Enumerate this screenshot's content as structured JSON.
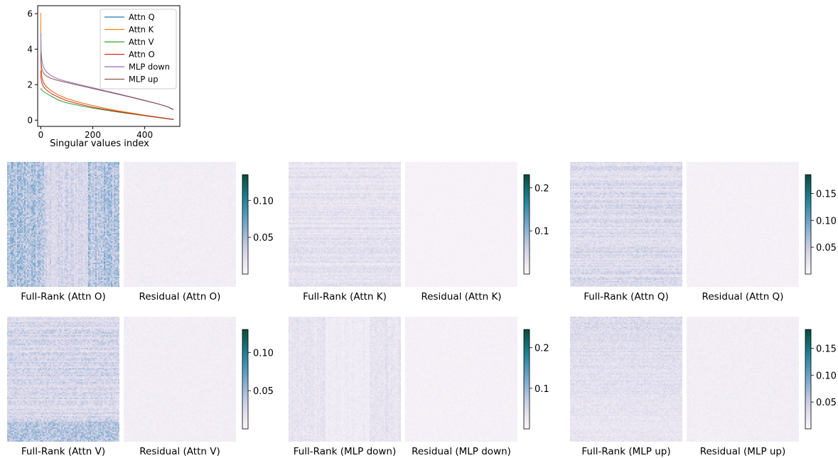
{
  "chart_data": [
    {
      "type": "line",
      "title": "",
      "xlabel": "Singular values index",
      "ylabel": "",
      "xlim": [
        -12,
        535
      ],
      "ylim": [
        -0.35,
        6.45
      ],
      "xticks": [
        0,
        200,
        400
      ],
      "yticks": [
        0,
        2,
        4,
        6
      ],
      "grid": false,
      "legend_position": "top-right",
      "series": [
        {
          "name": "Attn Q",
          "color": "#1f77b4",
          "x": [
            0,
            1,
            3,
            5,
            10,
            20,
            40,
            70,
            100,
            150,
            200,
            250,
            300,
            350,
            400,
            450,
            490,
            511
          ],
          "y": [
            5.5,
            3.0,
            2.55,
            2.35,
            2.1,
            1.9,
            1.65,
            1.4,
            1.22,
            1.0,
            0.82,
            0.66,
            0.52,
            0.4,
            0.28,
            0.17,
            0.09,
            0.05
          ]
        },
        {
          "name": "Attn K",
          "color": "#ff7f0e",
          "x": [
            0,
            1,
            3,
            5,
            10,
            20,
            40,
            70,
            100,
            150,
            200,
            250,
            300,
            350,
            400,
            450,
            490,
            511
          ],
          "y": [
            6.05,
            3.1,
            2.6,
            2.4,
            2.15,
            1.92,
            1.66,
            1.4,
            1.22,
            1.0,
            0.82,
            0.66,
            0.52,
            0.4,
            0.28,
            0.17,
            0.09,
            0.04
          ]
        },
        {
          "name": "Attn V",
          "color": "#2ca02c",
          "x": [
            0,
            1,
            3,
            5,
            10,
            20,
            40,
            70,
            100,
            150,
            200,
            250,
            300,
            350,
            400,
            450,
            490,
            511
          ],
          "y": [
            1.8,
            1.75,
            1.72,
            1.68,
            1.62,
            1.52,
            1.35,
            1.12,
            0.98,
            0.82,
            0.68,
            0.56,
            0.45,
            0.35,
            0.25,
            0.15,
            0.07,
            0.03
          ]
        },
        {
          "name": "Attn O",
          "color": "#d62728",
          "x": [
            0,
            1,
            3,
            5,
            10,
            20,
            40,
            70,
            100,
            150,
            200,
            250,
            300,
            350,
            400,
            450,
            490,
            511
          ],
          "y": [
            2.8,
            2.35,
            2.15,
            2.05,
            1.9,
            1.72,
            1.5,
            1.28,
            1.1,
            0.9,
            0.73,
            0.6,
            0.48,
            0.37,
            0.26,
            0.16,
            0.08,
            0.04
          ]
        },
        {
          "name": "MLP down",
          "color": "#9467bd",
          "x": [
            0,
            1,
            3,
            5,
            10,
            20,
            40,
            70,
            100,
            150,
            200,
            250,
            300,
            350,
            400,
            450,
            490,
            511
          ],
          "y": [
            4.9,
            4.0,
            3.5,
            3.3,
            3.0,
            2.75,
            2.5,
            2.3,
            2.18,
            2.0,
            1.83,
            1.65,
            1.48,
            1.3,
            1.12,
            0.93,
            0.75,
            0.6
          ]
        },
        {
          "name": "MLP up",
          "color": "#8c564b",
          "x": [
            0,
            1,
            3,
            5,
            10,
            20,
            40,
            70,
            100,
            150,
            200,
            250,
            300,
            350,
            400,
            450,
            490,
            511
          ],
          "y": [
            3.8,
            3.3,
            3.0,
            2.85,
            2.65,
            2.5,
            2.35,
            2.22,
            2.12,
            1.95,
            1.78,
            1.62,
            1.45,
            1.28,
            1.1,
            0.92,
            0.74,
            0.58
          ]
        }
      ]
    },
    {
      "type": "heatmap",
      "group": "Attn O",
      "panels": [
        {
          "title": "Full-Rank (Attn O)",
          "intensity": 0.32,
          "stripe": "vertical"
        },
        {
          "title": "Residual (Attn O)",
          "intensity": 0.07,
          "stripe": "none"
        }
      ],
      "colorbar": {
        "min": 0.0,
        "max": 0.135,
        "ticks": [
          0.05,
          0.1
        ],
        "tick_labels": [
          "0.05",
          "0.10"
        ]
      }
    },
    {
      "type": "heatmap",
      "group": "Attn K",
      "panels": [
        {
          "title": "Full-Rank (Attn K)",
          "intensity": 0.16,
          "stripe": "horizontal"
        },
        {
          "title": "Residual (Attn K)",
          "intensity": 0.04,
          "stripe": "none"
        }
      ],
      "colorbar": {
        "min": 0.0,
        "max": 0.23,
        "ticks": [
          0.1,
          0.2
        ],
        "tick_labels": [
          "0.1",
          "0.2"
        ]
      }
    },
    {
      "type": "heatmap",
      "group": "Attn Q",
      "panels": [
        {
          "title": "Full-Rank (Attn Q)",
          "intensity": 0.22,
          "stripe": "horizontal"
        },
        {
          "title": "Residual (Attn Q)",
          "intensity": 0.05,
          "stripe": "none"
        }
      ],
      "colorbar": {
        "min": 0.0,
        "max": 0.185,
        "ticks": [
          0.05,
          0.1,
          0.15
        ],
        "tick_labels": [
          "0.05",
          "0.10",
          "0.15"
        ]
      }
    },
    {
      "type": "heatmap",
      "group": "Attn V",
      "panels": [
        {
          "title": "Full-Rank (Attn V)",
          "intensity": 0.26,
          "stripe": "bands"
        },
        {
          "title": "Residual (Attn V)",
          "intensity": 0.07,
          "stripe": "none"
        }
      ],
      "colorbar": {
        "min": 0.0,
        "max": 0.13,
        "ticks": [
          0.05,
          0.1
        ],
        "tick_labels": [
          "0.05",
          "0.10"
        ]
      }
    },
    {
      "type": "heatmap",
      "group": "MLP down",
      "panels": [
        {
          "title": "Full-Rank (MLP down)",
          "intensity": 0.12,
          "stripe": "vertical"
        },
        {
          "title": "Residual (MLP down)",
          "intensity": 0.05,
          "stripe": "none"
        }
      ],
      "colorbar": {
        "min": 0.0,
        "max": 0.245,
        "ticks": [
          0.1,
          0.2
        ],
        "tick_labels": [
          "0.1",
          "0.2"
        ]
      }
    },
    {
      "type": "heatmap",
      "group": "MLP up",
      "panels": [
        {
          "title": "Full-Rank (MLP up)",
          "intensity": 0.2,
          "stripe": "gradient"
        },
        {
          "title": "Residual (MLP up)",
          "intensity": 0.07,
          "stripe": "none"
        }
      ],
      "colorbar": {
        "min": 0.0,
        "max": 0.185,
        "ticks": [
          0.05,
          0.1,
          0.15
        ],
        "tick_labels": [
          "0.05",
          "0.10",
          "0.15"
        ]
      }
    }
  ]
}
